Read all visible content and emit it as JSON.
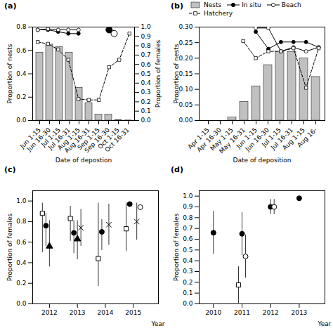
{
  "chart_data": [
    {
      "type": "bar",
      "title": "(a)",
      "categories": [
        "Jun 1-15",
        "Jun 16-30",
        "Jul 1-15",
        "Jul 16-31",
        "Aug 1-15",
        "Aug 16-31",
        "Sep 1-15",
        "Sep 16-30",
        "Oct 1-15",
        "Oct 16-31"
      ],
      "xlabel": "Date of depostion",
      "ylabel": "Proportion of nests",
      "y2label": "Proportion of females",
      "ylim": [
        0,
        0.8
      ],
      "yticks": [
        {
          "value": 0,
          "label": "0.0"
        },
        0.2,
        0.4,
        0.6,
        0.8
      ],
      "y2lim": [
        0,
        1.0
      ],
      "y2ticks": [
        {
          "value": 0,
          "label": "0.0"
        },
        0.1,
        0.2,
        0.3,
        0.4,
        0.5,
        0.6,
        0.7,
        0.8,
        0.9,
        {
          "value": 1,
          "label": "1.0"
        }
      ],
      "series": [
        {
          "type": "bar",
          "color": "#c0c0c0",
          "values": [
            0.58,
            0.65,
            0.63,
            0.58,
            0.28,
            0.15,
            0.05,
            0.05,
            0.005,
            0.001
          ]
        },
        {
          "type": "line",
          "axis": "y2",
          "color": "#000000",
          "marker": "circle",
          "line_style": "solid",
          "values": [
            0.97,
            0.97,
            0.95,
            0.93,
            0.93,
            null,
            null,
            null,
            null,
            null
          ]
        },
        {
          "type": "line",
          "axis": "y2",
          "color": "#000000",
          "marker": "open_circle",
          "line_style": "solid",
          "values": [
            0.97,
            0.98,
            0.97,
            0.97,
            0.97,
            null,
            null,
            null,
            null,
            null
          ]
        },
        {
          "type": "line",
          "axis": "y2",
          "color": "#000000",
          "marker": "open_square",
          "line_style": "dashed",
          "values": [
            0.84,
            0.82,
            0.76,
            0.65,
            0.23,
            0.22,
            0.22,
            0.57,
            0.65,
            0.93
          ]
        },
        {
          "type": "scatter",
          "axis": "y2",
          "color": "#000000",
          "marker": "circle",
          "x": [
            7
          ],
          "values": [
            0.97
          ]
        },
        {
          "type": "scatter",
          "axis": "y2",
          "color": "#000000",
          "marker": "open_circle",
          "x": [
            7.5
          ],
          "values": [
            0.93
          ]
        }
      ]
    },
    {
      "type": "bar",
      "title": "(b)",
      "categories": [
        "Apr 1-15",
        "Apr 16-30",
        "May 1-15",
        "May 16-31",
        "Jun 1-15",
        "Jun 16-30",
        "Jul 1-15",
        "Jul 16-31",
        "Aug 1-15",
        "Aug 16-"
      ],
      "xlabel": "Date of deposition",
      "ylabel": "Proportion of nests",
      "ylim": [
        0,
        0.3
      ],
      "yticks": [
        {
          "value": 0,
          "label": "0.00"
        },
        0.05,
        {
          "value": 0.1,
          "label": "0.10"
        },
        0.15,
        {
          "value": 0.2,
          "label": "0.20"
        },
        0.25,
        {
          "value": 0.3,
          "label": "0.30"
        }
      ],
      "legend": "top",
      "series": [
        {
          "name": "Nests",
          "type": "bar",
          "color": "#c0c0c0",
          "values": [
            0.0,
            0.0,
            0.01,
            0.06,
            0.11,
            0.178,
            0.22,
            0.22,
            0.2,
            0.14
          ]
        },
        {
          "name": "In situ",
          "type": "line",
          "color": "#000000",
          "marker": "circle",
          "line_style": "solid",
          "values": [
            null,
            null,
            null,
            null,
            0.285,
            0.23,
            0.252,
            0.252,
            0.252,
            0.235
          ]
        },
        {
          "name": "Beach",
          "type": "line",
          "color": "#000000",
          "marker": "open_circle",
          "line_style": "solid",
          "values": [
            null,
            null,
            null,
            null,
            0.297,
            0.297,
            0.222,
            0.235,
            0.222,
            0.235
          ]
        },
        {
          "name": "Hatchery",
          "type": "line",
          "color": "#000000",
          "marker": "open_square",
          "line_style": "dashed",
          "values": [
            null,
            null,
            null,
            0.255,
            0.2,
            0.222,
            0.222,
            0.232,
            0.105,
            0.232
          ]
        }
      ]
    },
    {
      "type": "scatter",
      "title": "(c)",
      "x": [
        2012,
        2013,
        2014,
        2015
      ],
      "xlabel": "Year",
      "ylabel": "Proportion of females",
      "xlim": [
        2011.4,
        2015.9
      ],
      "xticks": [
        2012,
        2013,
        2014,
        2015
      ],
      "ylim": [
        0,
        1.1
      ],
      "yticks": [
        {
          "value": 0,
          "label": "0.0"
        },
        0.2,
        0.4,
        0.6,
        0.8,
        {
          "value": 1,
          "label": "1.0"
        }
      ],
      "series": [
        {
          "color": "#000000",
          "marker": "open_square",
          "values": [
            0.88,
            0.83,
            0.44,
            0.73
          ],
          "yerr_lo": [
            0.38,
            0.22,
            0.27,
            0.22
          ],
          "yerr_hi": [
            0.1,
            0.12,
            0.54,
            0.25
          ]
        },
        {
          "color": "#000000",
          "marker": "circle",
          "values": [
            0.76,
            0.69,
            0.7,
            0.97
          ],
          "yerr_lo": [
            0.2,
            0.2,
            0.18,
            0.02
          ],
          "yerr_hi": [
            0.12,
            0.12,
            0.12,
            0.01
          ]
        },
        {
          "color": "#000000",
          "marker": "triangle",
          "values": [
            0.56,
            0.63,
            null,
            null
          ],
          "yerr_lo": [
            0.2,
            0.2,
            null,
            null
          ],
          "yerr_hi": [
            0.25,
            0.18,
            null,
            null
          ]
        },
        {
          "color": "#000000",
          "marker": "x",
          "values": [
            null,
            0.74,
            0.77,
            0.8
          ],
          "yerr_lo": [
            null,
            0.18,
            0.2,
            0.18
          ],
          "yerr_hi": [
            null,
            0.18,
            0.2,
            0.18
          ]
        },
        {
          "color": "#000000",
          "marker": "open_circle",
          "values": [
            null,
            null,
            null,
            0.94
          ],
          "yerr_lo": [
            null,
            null,
            null,
            0.02
          ],
          "yerr_hi": [
            null,
            null,
            null,
            0.02
          ]
        }
      ]
    },
    {
      "type": "scatter",
      "title": "(d)",
      "x": [
        2010,
        2011,
        2012,
        2013
      ],
      "xlabel": "Year",
      "ylabel": "Proportion of females",
      "xlim": [
        2009.5,
        2013.9
      ],
      "xticks": [
        2010,
        2011,
        2012,
        2013
      ],
      "ylim": [
        0,
        1.05
      ],
      "yticks": [
        {
          "value": 0,
          "label": "0.0"
        },
        0.1,
        0.2,
        0.3,
        0.4,
        0.5,
        0.6,
        0.7,
        0.8,
        0.9,
        {
          "value": 1,
          "label": "1.0"
        }
      ],
      "series": [
        {
          "color": "#000000",
          "marker": "open_square",
          "values": [
            null,
            0.175,
            null,
            null
          ],
          "yerr_lo": [
            null,
            0.17,
            null,
            null
          ],
          "yerr_hi": [
            null,
            0.17,
            null,
            null
          ]
        },
        {
          "color": "#000000",
          "marker": "circle",
          "values": [
            0.66,
            0.65,
            0.9,
            0.98
          ],
          "yerr_lo": [
            0.2,
            0.2,
            0.07,
            0.01
          ],
          "yerr_hi": [
            0.2,
            0.2,
            0.07,
            0.01
          ]
        },
        {
          "color": "#000000",
          "marker": "open_circle",
          "values": [
            null,
            0.44,
            0.9,
            null
          ],
          "yerr_lo": [
            null,
            0.2,
            0.07,
            null
          ],
          "yerr_hi": [
            null,
            0.2,
            0.07,
            null
          ]
        }
      ]
    }
  ]
}
